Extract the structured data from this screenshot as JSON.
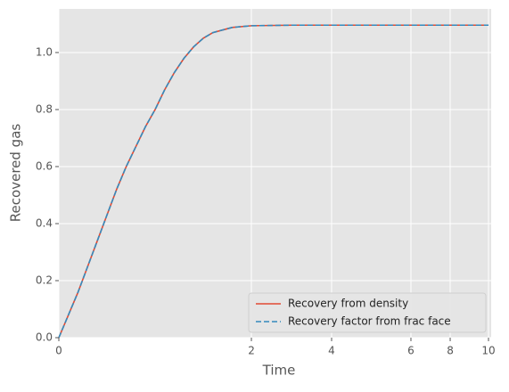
{
  "chart_data": {
    "type": "line",
    "xlabel": "Time",
    "ylabel": "Recovered gas",
    "x": [
      0,
      0.1,
      0.2,
      0.3,
      0.4,
      0.5,
      0.6,
      0.7,
      0.8,
      0.9,
      1.0,
      1.1,
      1.2,
      1.3,
      1.4,
      1.5,
      1.6,
      1.8,
      2,
      3,
      4,
      6,
      8,
      10
    ],
    "series": [
      {
        "name": "Recovery from density",
        "color": "#e24a33",
        "dash": false,
        "values": [
          0,
          0.08,
          0.16,
          0.25,
          0.34,
          0.43,
          0.52,
          0.6,
          0.67,
          0.74,
          0.8,
          0.87,
          0.93,
          0.98,
          1.02,
          1.05,
          1.07,
          1.088,
          1.094,
          1.096,
          1.096,
          1.096,
          1.096,
          1.096
        ]
      },
      {
        "name": "Recovery factor from frac face",
        "color": "#348abd",
        "dash": true,
        "values": [
          0,
          0.08,
          0.16,
          0.25,
          0.34,
          0.43,
          0.52,
          0.6,
          0.67,
          0.74,
          0.8,
          0.87,
          0.93,
          0.98,
          1.02,
          1.05,
          1.07,
          1.088,
          1.094,
          1.096,
          1.096,
          1.096,
          1.096,
          1.096
        ]
      }
    ],
    "xlim": [
      0,
      10.07
    ],
    "xticks": [
      0,
      2,
      4,
      6,
      8,
      10
    ],
    "ylim": [
      0,
      1.153
    ],
    "yticks": [
      {
        "value": 0,
        "label": "0.0"
      },
      {
        "value": 0.2,
        "label": "0.2"
      },
      {
        "value": 0.4,
        "label": "0.4"
      },
      {
        "value": 0.6,
        "label": "0.6"
      },
      {
        "value": 0.8,
        "label": "0.8"
      },
      {
        "value": 1.0,
        "label": "1.0"
      }
    ],
    "grid": true,
    "legend": "lower right"
  }
}
